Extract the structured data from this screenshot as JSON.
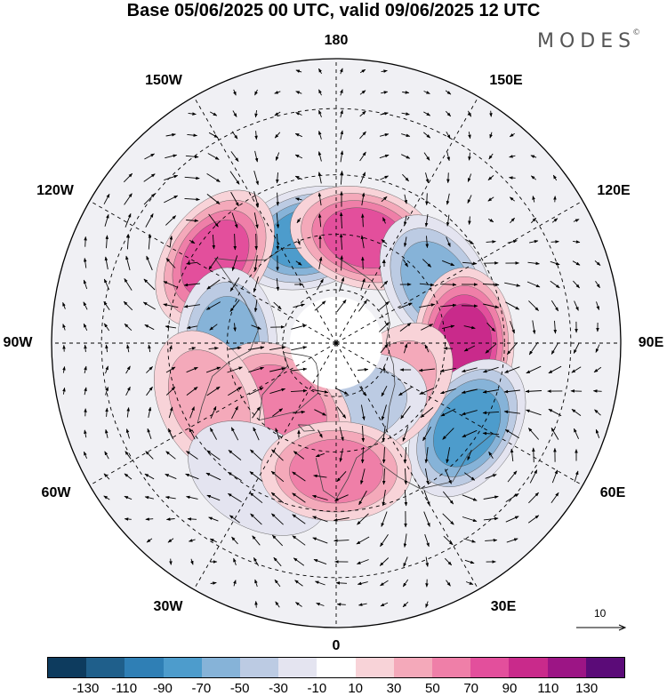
{
  "title": "Base 05/06/2025 00 UTC, valid 09/06/2025 12 UTC",
  "brand": "MODES",
  "brand_mark": "©",
  "longitude_labels": {
    "lon_180": "180",
    "lon_150e": "150E",
    "lon_120e": "120E",
    "lon_90e": "90E",
    "lon_60e": "60E",
    "lon_30e": "30E",
    "lon_0": "0",
    "lon_30w": "30W",
    "lon_60w": "60W",
    "lon_90w": "90W",
    "lon_120w": "120W",
    "lon_150w": "150W"
  },
  "wind_reference": {
    "label": "10",
    "value": 10
  },
  "colorbar": {
    "colors": [
      "#0d3b5e",
      "#1f5f8b",
      "#2f7fb5",
      "#4d9ccc",
      "#86b3d8",
      "#bccbe3",
      "#e4e4f0",
      "#ffffff",
      "#f8d3d8",
      "#f4a9ba",
      "#ef7fa8",
      "#e34f9c",
      "#c92a8b",
      "#9c1585",
      "#5b0b78"
    ],
    "tick_labels": [
      "-130",
      "-110",
      "-90",
      "-70",
      "-50",
      "-30",
      "-10",
      "10",
      "30",
      "50",
      "70",
      "90",
      "110",
      "130"
    ],
    "levels": [
      -130,
      -110,
      -90,
      -70,
      -50,
      -30,
      -10,
      10,
      30,
      50,
      70,
      90,
      110,
      130
    ]
  },
  "anomaly_centers": [
    {
      "sign": "negative",
      "peak": -90,
      "lon": -165,
      "lat": 60
    },
    {
      "sign": "positive",
      "peak": 90,
      "lon": 165,
      "lat": 60
    },
    {
      "sign": "positive",
      "peak": 90,
      "lon": -125,
      "lat": 50
    },
    {
      "sign": "negative",
      "peak": -70,
      "lon": -90,
      "lat": 60
    },
    {
      "sign": "negative",
      "peak": -70,
      "lon": 120,
      "lat": 58
    },
    {
      "sign": "positive",
      "peak": 110,
      "lon": 90,
      "lat": 55
    },
    {
      "sign": "negative",
      "peak": -90,
      "lon": 57,
      "lat": 48
    },
    {
      "sign": "positive",
      "peak": 50,
      "lon": 50,
      "lat": 70
    },
    {
      "sign": "negative",
      "peak": -50,
      "lon": 15,
      "lat": 72
    },
    {
      "sign": "positive",
      "peak": 70,
      "lon": -40,
      "lat": 68
    },
    {
      "sign": "positive",
      "peak": 50,
      "lon": -65,
      "lat": 52
    },
    {
      "sign": "negative",
      "peak": -30,
      "lon": -30,
      "lat": 48
    },
    {
      "sign": "positive",
      "peak": 70,
      "lon": 0,
      "lat": 55
    }
  ]
}
